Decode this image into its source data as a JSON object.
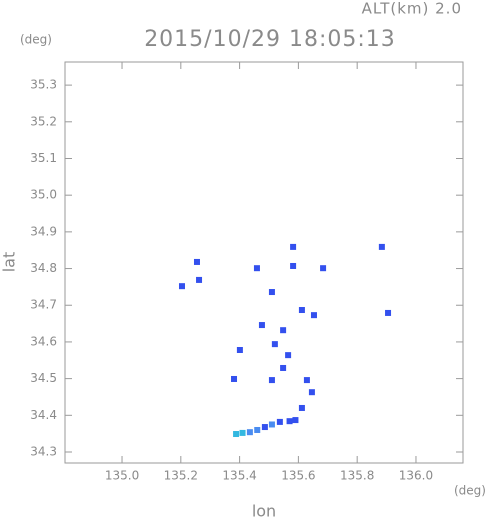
{
  "chart_data": {
    "type": "scatter",
    "title": "2015/10/29 18:05:13",
    "altitude_label": "ALT(km) 2.0",
    "y_unit": "(deg)",
    "x_unit": "(deg)",
    "x_label": "lon",
    "y_label": "lat",
    "xlim": [
      134.806,
      136.16
    ],
    "ylim": [
      34.27,
      35.363
    ],
    "xticks": [
      {
        "value": 135,
        "label": "135.0"
      },
      135.2,
      135.4,
      135.6,
      135.8,
      {
        "value": 136,
        "label": "136.0"
      }
    ],
    "yticks": [
      34.3,
      34.4,
      34.5,
      34.6,
      34.7,
      34.8,
      34.9,
      {
        "value": 35,
        "label": "35.0"
      },
      35.1,
      35.2,
      35.3
    ],
    "series": [
      {
        "color": "#3350ee",
        "x": [
          135.204,
          135.262,
          135.255,
          135.459,
          135.582,
          135.582,
          135.684,
          135.884,
          135.905,
          135.51,
          135.476,
          135.612,
          135.653,
          135.548,
          135.52,
          135.401,
          135.565,
          135.548,
          135.51,
          135.381,
          135.629,
          135.646,
          135.612,
          135.537,
          135.486,
          135.57,
          135.59
        ],
        "values": [
          34.752,
          34.769,
          34.818,
          34.801,
          34.859,
          34.807,
          34.801,
          34.859,
          34.679,
          34.736,
          34.646,
          34.687,
          34.673,
          34.632,
          34.594,
          34.578,
          34.564,
          34.529,
          34.496,
          34.499,
          34.496,
          34.463,
          34.42,
          34.382,
          34.368,
          34.384,
          34.387
        ]
      },
      {
        "color": "#4a8cf0",
        "x": [
          135.435,
          135.46,
          135.51
        ],
        "values": [
          34.354,
          34.36,
          34.375
        ]
      },
      {
        "color": "#33b8e0",
        "x": [
          135.388,
          135.41
        ],
        "values": [
          34.349,
          34.352
        ]
      }
    ]
  }
}
